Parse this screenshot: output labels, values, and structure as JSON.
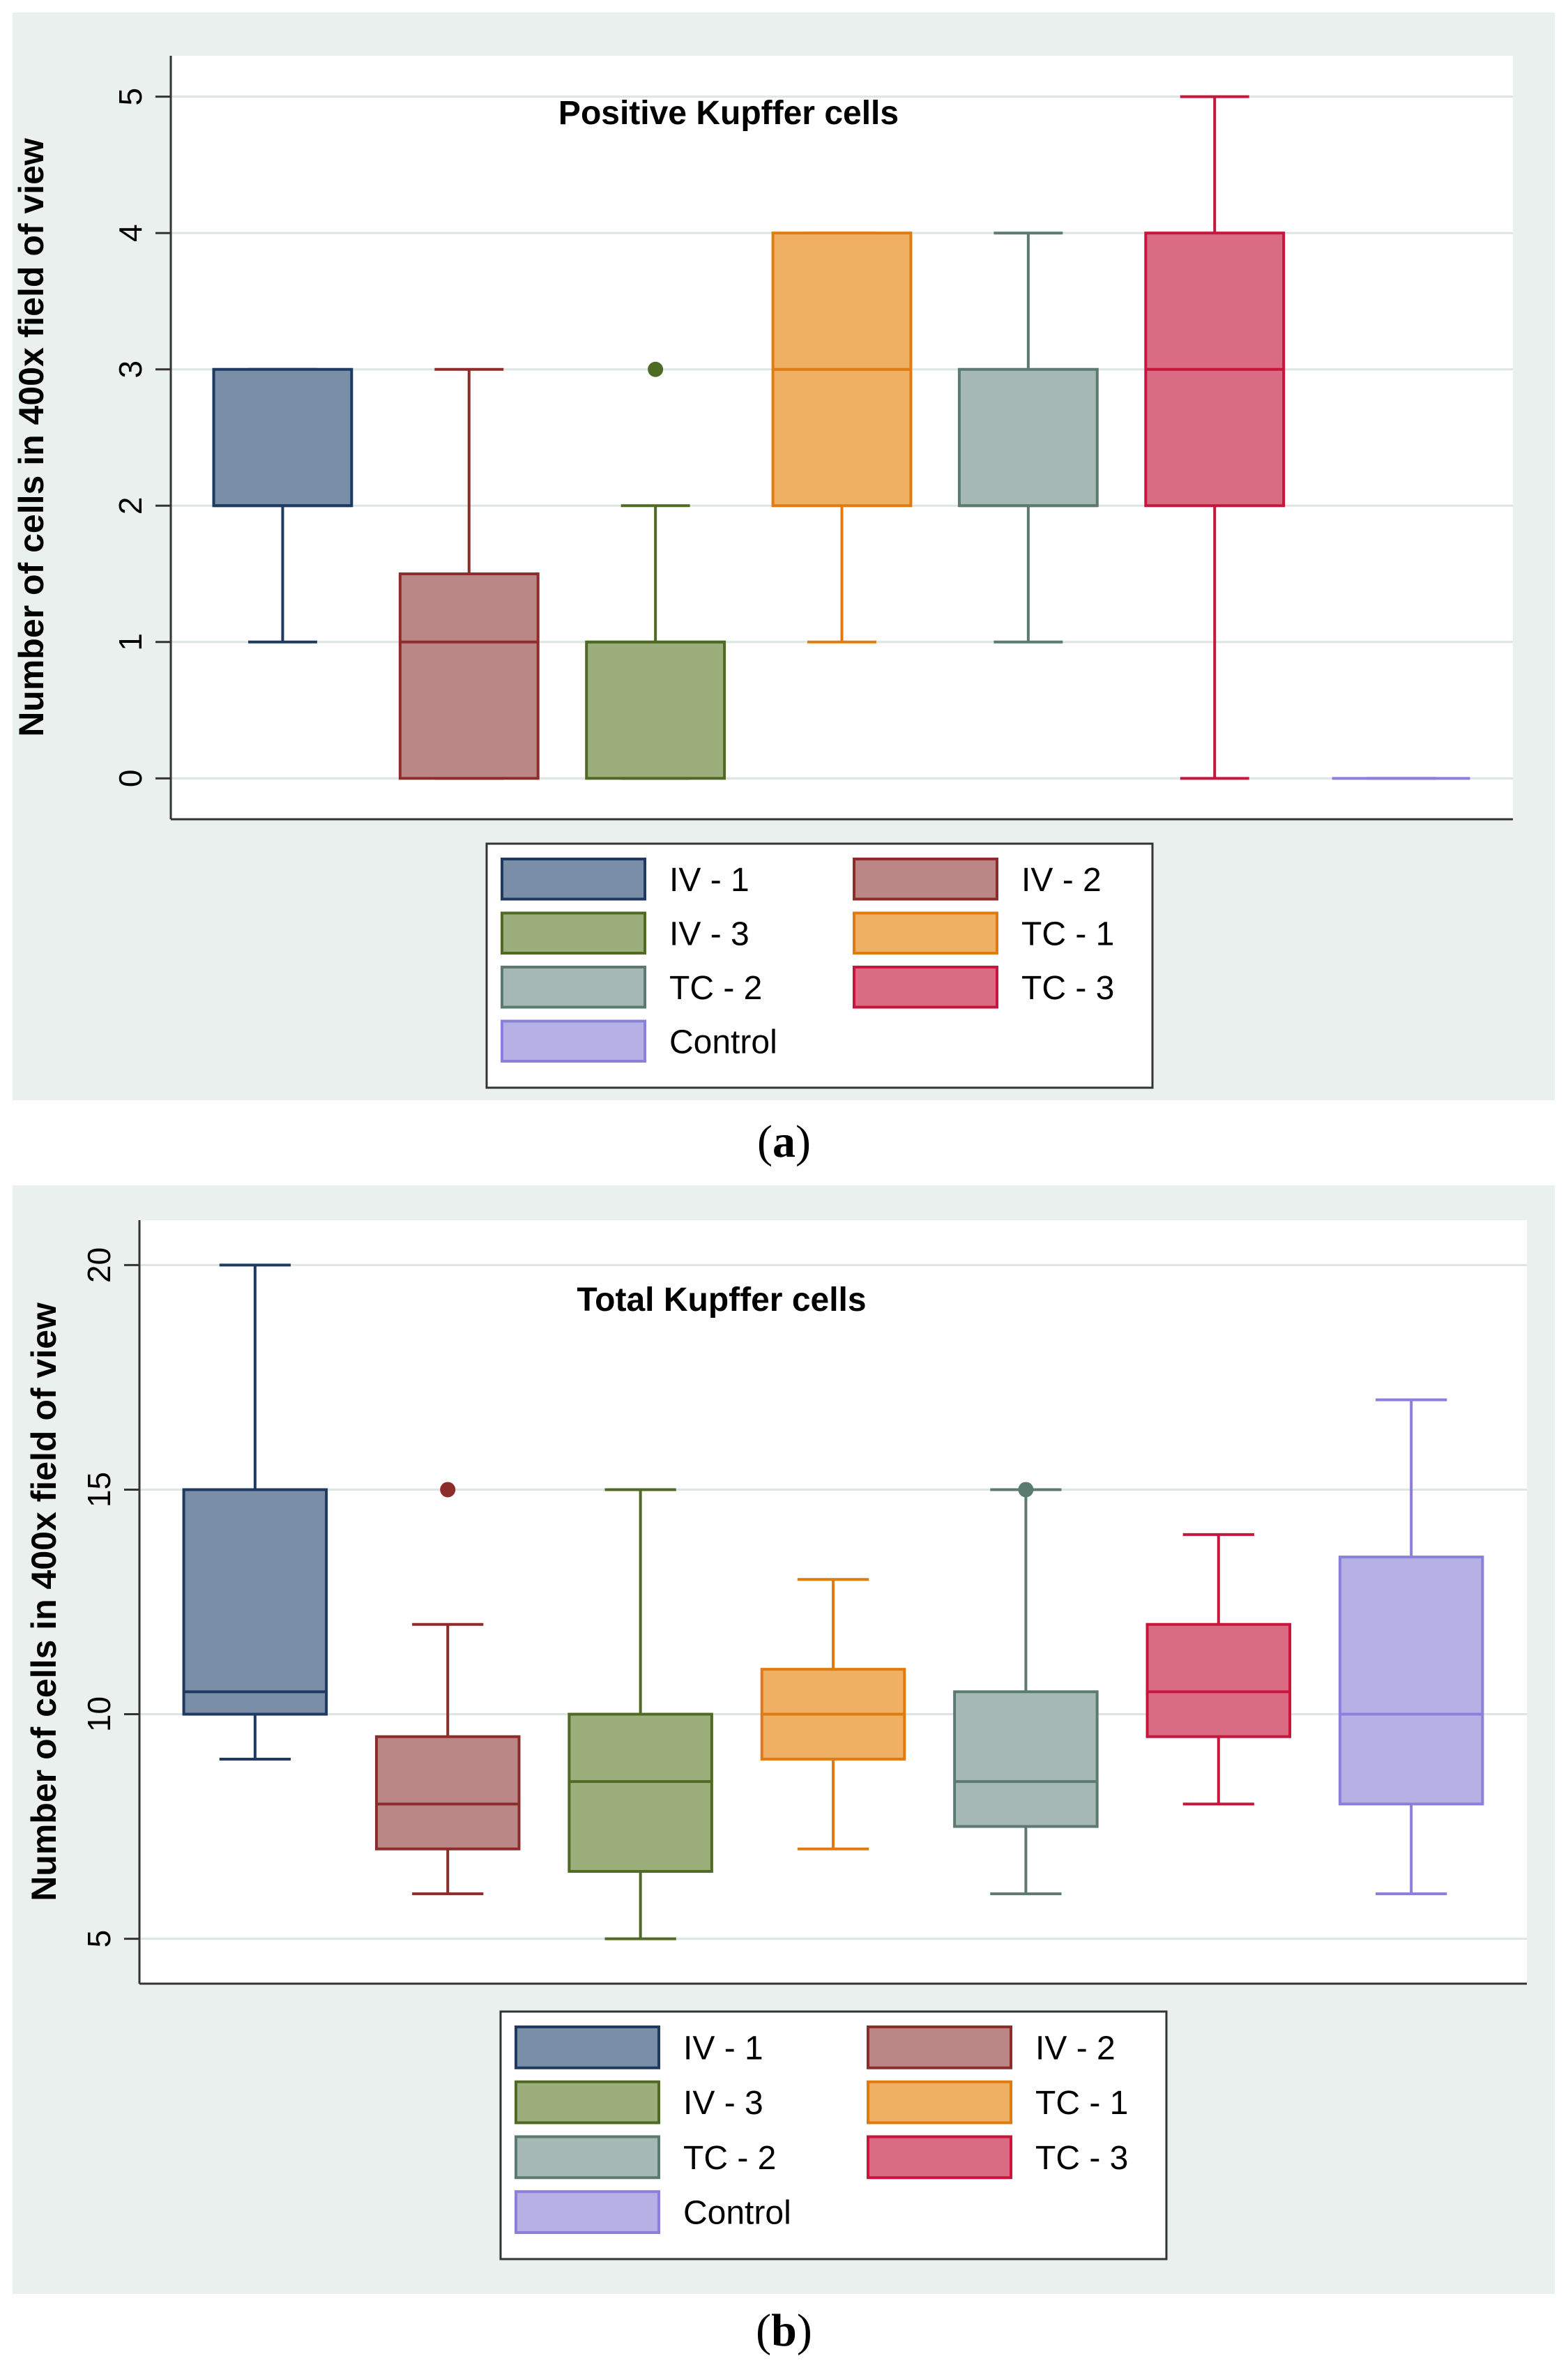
{
  "colors": {
    "panel_bg": "#eaf0ee",
    "plot_bg": "#ffffff",
    "grid": "#dde6e4",
    "axis": "#333333",
    "text": "#000000"
  },
  "groups": [
    {
      "name": "IV - 1",
      "fill": "#7a8ea8",
      "stroke": "#1f3a60"
    },
    {
      "name": "IV - 2",
      "fill": "#bb8686",
      "stroke": "#8e2c2c"
    },
    {
      "name": "IV - 3",
      "fill": "#9bae7c",
      "stroke": "#4f6a25"
    },
    {
      "name": "TC - 1",
      "fill": "#efb064",
      "stroke": "#e07b12"
    },
    {
      "name": "TC - 2",
      "fill": "#a6b8b3",
      "stroke": "#5c7a72"
    },
    {
      "name": "TC - 3",
      "fill": "#d96b83",
      "stroke": "#c6163b"
    },
    {
      "name": "Control",
      "fill": "#b7b0e4",
      "stroke": "#8a7fdb"
    }
  ],
  "captions": {
    "a": {
      "open": "(",
      "letter": "a",
      "close": ")"
    },
    "b": {
      "open": "(",
      "letter": "b",
      "close": ")"
    }
  },
  "chart_data": [
    {
      "type": "boxplot",
      "title": "Positive Kupffer cells",
      "ylabel": "Number of cells in 400x field of view",
      "xlabel": "",
      "ylim": [
        -0.3,
        5.3
      ],
      "yticks": [
        0,
        1,
        2,
        3,
        4,
        5
      ],
      "grid": true,
      "legend": "bottom",
      "boxes": [
        {
          "group": "IV - 1",
          "min": 1,
          "q1": 2,
          "median": 2,
          "q3": 3,
          "max": 3,
          "outliers": []
        },
        {
          "group": "IV - 2",
          "min": 0,
          "q1": 0,
          "median": 1,
          "q3": 1.5,
          "max": 3,
          "outliers": []
        },
        {
          "group": "IV - 3",
          "min": 0,
          "q1": 0,
          "median": 1,
          "q3": 1,
          "max": 2,
          "outliers": [
            3
          ]
        },
        {
          "group": "TC - 1",
          "min": 1,
          "q1": 2,
          "median": 3,
          "q3": 4,
          "max": 4,
          "outliers": []
        },
        {
          "group": "TC - 2",
          "min": 1,
          "q1": 2,
          "median": 2,
          "q3": 3,
          "max": 4,
          "outliers": []
        },
        {
          "group": "TC - 3",
          "min": 0,
          "q1": 2,
          "median": 3,
          "q3": 4,
          "max": 5,
          "outliers": []
        },
        {
          "group": "Control",
          "min": 0,
          "q1": 0,
          "median": 0,
          "q3": 0,
          "max": 0,
          "outliers": []
        }
      ]
    },
    {
      "type": "boxplot",
      "title": "Total Kupffer cells",
      "ylabel": "Number of cells in 400x field of view",
      "xlabel": "",
      "ylim": [
        4,
        21
      ],
      "yticks": [
        5,
        10,
        15,
        20
      ],
      "grid": true,
      "legend": "bottom",
      "boxes": [
        {
          "group": "IV - 1",
          "min": 9,
          "q1": 10,
          "median": 10.5,
          "q3": 15,
          "max": 20,
          "outliers": []
        },
        {
          "group": "IV - 2",
          "min": 6,
          "q1": 7,
          "median": 8,
          "q3": 9.5,
          "max": 12,
          "outliers": [
            15
          ]
        },
        {
          "group": "IV - 3",
          "min": 5,
          "q1": 6.5,
          "median": 8.5,
          "q3": 10,
          "max": 15,
          "outliers": []
        },
        {
          "group": "TC - 1",
          "min": 7,
          "q1": 9,
          "median": 10,
          "q3": 11,
          "max": 13,
          "outliers": []
        },
        {
          "group": "TC - 2",
          "min": 6,
          "q1": 7.5,
          "median": 8.5,
          "q3": 10.5,
          "max": 15,
          "outliers": [
            15
          ]
        },
        {
          "group": "TC - 3",
          "min": 8,
          "q1": 9.5,
          "median": 10.5,
          "q3": 12,
          "max": 14,
          "outliers": []
        },
        {
          "group": "Control",
          "min": 6,
          "q1": 8,
          "median": 10,
          "q3": 13.5,
          "max": 17,
          "outliers": []
        }
      ]
    }
  ]
}
